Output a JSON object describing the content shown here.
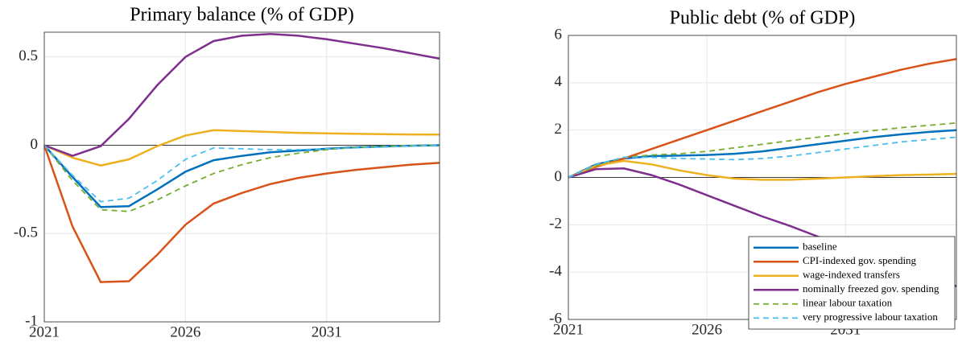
{
  "chart_data": [
    {
      "type": "line",
      "title": "Primary balance (% of GDP)",
      "x": [
        2021,
        2022,
        2023,
        2024,
        2025,
        2026,
        2027,
        2028,
        2029,
        2030,
        2031,
        2032,
        2033,
        2034,
        2035
      ],
      "xlim": [
        2021,
        2035
      ],
      "xticks": [
        2021,
        2026,
        2031
      ],
      "ylim": [
        -1,
        0.64
      ],
      "yticks": [
        -1,
        -0.5,
        0,
        0.5
      ],
      "grid": true,
      "series": [
        {
          "color": "#0072bd",
          "dash": false,
          "values": [
            0,
            -0.18,
            -0.35,
            -0.345,
            -0.25,
            -0.15,
            -0.085,
            -0.06,
            -0.04,
            -0.03,
            -0.02,
            -0.012,
            -0.007,
            -0.003,
            0
          ]
        },
        {
          "color": "#d95319",
          "dash": false,
          "values": [
            0,
            -0.46,
            -0.775,
            -0.77,
            -0.62,
            -0.45,
            -0.33,
            -0.27,
            -0.22,
            -0.185,
            -0.16,
            -0.14,
            -0.125,
            -0.11,
            -0.1
          ]
        },
        {
          "color": "#edb120",
          "dash": false,
          "values": [
            0,
            -0.07,
            -0.115,
            -0.08,
            -0.005,
            0.055,
            0.085,
            0.08,
            0.075,
            0.07,
            0.067,
            0.065,
            0.063,
            0.061,
            0.06
          ]
        },
        {
          "color": "#7e2f8e",
          "dash": false,
          "values": [
            0,
            -0.06,
            -0.005,
            0.15,
            0.34,
            0.5,
            0.59,
            0.62,
            0.63,
            0.62,
            0.6,
            0.575,
            0.55,
            0.52,
            0.49
          ]
        },
        {
          "color": "#77ac30",
          "dash": true,
          "values": [
            0,
            -0.2,
            -0.365,
            -0.375,
            -0.31,
            -0.23,
            -0.16,
            -0.11,
            -0.07,
            -0.045,
            -0.025,
            -0.012,
            -0.006,
            -0.002,
            0
          ]
        },
        {
          "color": "#4dbeee",
          "dash": true,
          "values": [
            0,
            -0.17,
            -0.32,
            -0.3,
            -0.2,
            -0.08,
            -0.015,
            -0.02,
            -0.025,
            -0.025,
            -0.02,
            -0.015,
            -0.01,
            -0.005,
            0
          ]
        }
      ]
    },
    {
      "type": "line",
      "title": "Public debt (% of GDP)",
      "x": [
        2021,
        2022,
        2023,
        2024,
        2025,
        2026,
        2027,
        2028,
        2029,
        2030,
        2031,
        2032,
        2033,
        2034,
        2035
      ],
      "xlim": [
        2021,
        2035
      ],
      "xticks": [
        2021,
        2026,
        2031
      ],
      "ylim": [
        -6,
        6
      ],
      "yticks": [
        -6,
        -4,
        -2,
        0,
        2,
        4,
        6
      ],
      "grid": true,
      "legend": "lower right",
      "series": [
        {
          "name": "baseline",
          "color": "#0072bd",
          "dash": false,
          "values": [
            0,
            0.55,
            0.8,
            0.9,
            0.92,
            0.95,
            1.0,
            1.1,
            1.25,
            1.4,
            1.55,
            1.7,
            1.82,
            1.92,
            2.0
          ]
        },
        {
          "name": "CPI-indexed gov. spending",
          "color": "#d95319",
          "dash": false,
          "values": [
            0,
            0.45,
            0.8,
            1.2,
            1.6,
            2.0,
            2.4,
            2.8,
            3.2,
            3.6,
            3.95,
            4.25,
            4.55,
            4.8,
            5.0
          ]
        },
        {
          "name": "wage-indexed transfers",
          "color": "#edb120",
          "dash": false,
          "values": [
            0,
            0.5,
            0.7,
            0.55,
            0.3,
            0.1,
            -0.05,
            -0.1,
            -0.1,
            -0.05,
            0,
            0.05,
            0.1,
            0.12,
            0.15
          ]
        },
        {
          "name": "nominally freezed gov. spending",
          "color": "#7e2f8e",
          "dash": false,
          "values": [
            0,
            0.35,
            0.38,
            0.1,
            -0.3,
            -0.75,
            -1.2,
            -1.65,
            -2.05,
            -2.5,
            -2.9,
            -3.3,
            -3.7,
            -4.1,
            -4.6
          ]
        },
        {
          "name": "linear labour taxation",
          "color": "#77ac30",
          "dash": true,
          "values": [
            0,
            0.5,
            0.85,
            0.95,
            1.0,
            1.1,
            1.25,
            1.4,
            1.55,
            1.7,
            1.85,
            1.98,
            2.1,
            2.2,
            2.3
          ]
        },
        {
          "name": "very progressive labour taxation",
          "color": "#4dbeee",
          "dash": true,
          "values": [
            0,
            0.55,
            0.85,
            0.85,
            0.8,
            0.78,
            0.75,
            0.8,
            0.9,
            1.05,
            1.2,
            1.35,
            1.5,
            1.6,
            1.7
          ]
        }
      ]
    }
  ]
}
